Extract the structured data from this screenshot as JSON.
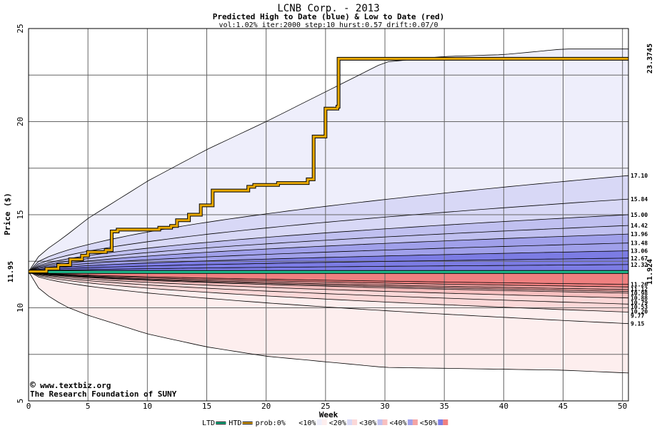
{
  "chart_data": {
    "type": "area",
    "title": "LCNB Corp. - 2013",
    "subtitle": "Predicted High to Date (blue) &  Low to Date (red)",
    "params": "vol:1.02% iter:2000 step:10 hurst:0.57 drift:0.07/0",
    "xlabel": "Week",
    "ylabel": "Price ($)",
    "xlim": [
      0,
      50.5
    ],
    "ylim": [
      5,
      25
    ],
    "x_ticks": [
      0,
      5,
      10,
      15,
      20,
      25,
      30,
      35,
      40,
      45,
      50
    ],
    "y_ticks": [
      5,
      10,
      15,
      20,
      25
    ],
    "grid": true,
    "start_price_label": "11.95",
    "actual_high_label": "23.3745",
    "actual_low_label": "11.924",
    "colors": {
      "actual_line": "#e8a800",
      "ltd_line": "#20c090",
      "blue_10": "#eeeefb",
      "blue_20": "#d8d8f6",
      "blue_30": "#c0c0f0",
      "blue_40": "#a0a0ea",
      "blue_50": "#7c7ce4",
      "red_10": "#fdeeee",
      "red_20": "#fbd8d8",
      "red_30": "#f8c0c0",
      "red_40": "#f4a4a4",
      "red_50": "#f08080"
    },
    "high_quantiles": [
      {
        "label": "17.10",
        "end": 17.1
      },
      {
        "label": "15.84",
        "end": 15.84
      },
      {
        "label": "15.00",
        "end": 15.0
      },
      {
        "label": "14.42",
        "end": 14.42
      },
      {
        "label": "13.96",
        "end": 13.96
      },
      {
        "label": "13.48",
        "end": 13.48
      },
      {
        "label": "13.06",
        "end": 13.06
      },
      {
        "label": "12.67",
        "end": 12.67
      },
      {
        "label": "12.32",
        "end": 12.32
      }
    ],
    "low_quantiles": [
      {
        "label": "11.26",
        "end": 11.26
      },
      {
        "label": "11.12",
        "end": 11.12
      },
      {
        "label": "10.98",
        "end": 10.98
      },
      {
        "label": "10.88",
        "end": 10.88
      },
      {
        "label": "10.79",
        "end": 10.79
      },
      {
        "label": "10.53",
        "end": 10.53
      },
      {
        "label": "10.20",
        "end": 10.2
      },
      {
        "label": "9.77",
        "end": 9.77
      },
      {
        "label": "9.15",
        "end": 9.15
      }
    ],
    "envelope_high": [
      [
        0,
        11.95
      ],
      [
        1,
        12.9
      ],
      [
        3,
        13.8
      ],
      [
        5,
        14.8
      ],
      [
        10,
        16.8
      ],
      [
        15,
        18.5
      ],
      [
        20,
        20.0
      ],
      [
        25,
        21.6
      ],
      [
        30,
        23.2
      ],
      [
        35,
        23.5
      ],
      [
        40,
        23.6
      ],
      [
        45,
        23.9
      ],
      [
        50.5,
        23.9
      ]
    ],
    "envelope_low": [
      [
        0,
        11.95
      ],
      [
        1,
        10.9
      ],
      [
        3,
        10.1
      ],
      [
        5,
        9.6
      ],
      [
        10,
        8.6
      ],
      [
        15,
        7.9
      ],
      [
        20,
        7.4
      ],
      [
        25,
        7.1
      ],
      [
        30,
        6.8
      ],
      [
        35,
        6.75
      ],
      [
        40,
        6.7
      ],
      [
        45,
        6.65
      ],
      [
        50.5,
        6.5
      ]
    ],
    "actual_high_series": [
      [
        0,
        11.95
      ],
      [
        1.5,
        12.1
      ],
      [
        2.5,
        12.3
      ],
      [
        3.5,
        12.6
      ],
      [
        4.5,
        12.8
      ],
      [
        5,
        13.0
      ],
      [
        6.5,
        13.1
      ],
      [
        7.0,
        14.1
      ],
      [
        7.5,
        14.2
      ],
      [
        10,
        14.2
      ],
      [
        11,
        14.3
      ],
      [
        12,
        14.4
      ],
      [
        12.5,
        14.7
      ],
      [
        13.5,
        15.0
      ],
      [
        14.5,
        15.5
      ],
      [
        15.5,
        16.3
      ],
      [
        18.5,
        16.5
      ],
      [
        19,
        16.6
      ],
      [
        21,
        16.7
      ],
      [
        23.5,
        16.9
      ],
      [
        24,
        19.2
      ],
      [
        25,
        20.7
      ],
      [
        26,
        20.8
      ],
      [
        26.1,
        23.3745
      ],
      [
        50.5,
        23.3745
      ]
    ],
    "actual_low_value": 11.924,
    "legend": [
      {
        "label": "LTD"
      },
      {
        "label": "HTD"
      },
      {
        "label": "prob:0%"
      },
      {
        "label": "<10%"
      },
      {
        "label": "<20%"
      },
      {
        "label": "<30%"
      },
      {
        "label": "<40%"
      },
      {
        "label": "<50%"
      }
    ]
  },
  "watermark": {
    "line1": "www.textbiz.org",
    "line2": "The Research Foundation of SUNY"
  }
}
